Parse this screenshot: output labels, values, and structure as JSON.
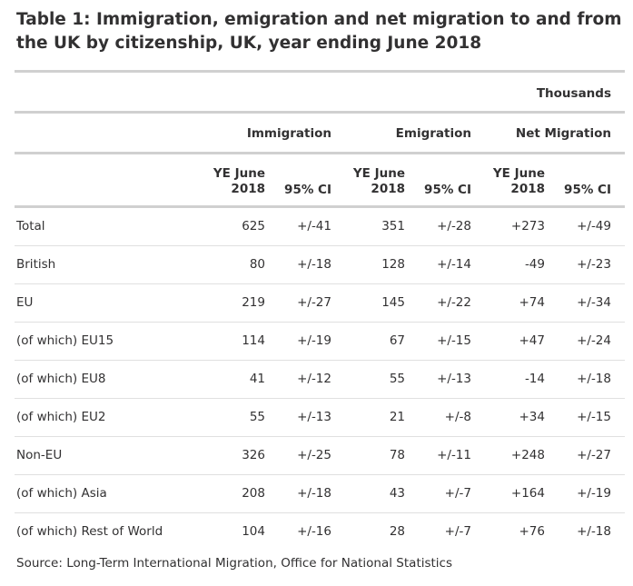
{
  "title": "Table 1: Immigration, emigration and net migration to and from the UK by citizenship, UK, year ending June 2018",
  "units": "Thousands",
  "groups": {
    "immigration": "Immigration",
    "emigration": "Emigration",
    "net": "Net Migration"
  },
  "subheaders": {
    "ye_line1": "YE June",
    "ye_line2": "2018",
    "ci": "95% CI"
  },
  "rows": [
    {
      "label": "Total",
      "imm": "625",
      "imm_ci": "+/-41",
      "emi": "351",
      "emi_ci": "+/-28",
      "net": "+273",
      "net_ci": "+/-49"
    },
    {
      "label": "British",
      "imm": "80",
      "imm_ci": "+/-18",
      "emi": "128",
      "emi_ci": "+/-14",
      "net": "-49",
      "net_ci": "+/-23"
    },
    {
      "label": "EU",
      "imm": "219",
      "imm_ci": "+/-27",
      "emi": "145",
      "emi_ci": "+/-22",
      "net": "+74",
      "net_ci": "+/-34"
    },
    {
      "label": "(of which) EU15",
      "imm": "114",
      "imm_ci": "+/-19",
      "emi": "67",
      "emi_ci": "+/-15",
      "net": "+47",
      "net_ci": "+/-24"
    },
    {
      "label": "(of which) EU8",
      "imm": "41",
      "imm_ci": "+/-12",
      "emi": "55",
      "emi_ci": "+/-13",
      "net": "-14",
      "net_ci": "+/-18"
    },
    {
      "label": "(of which) EU2",
      "imm": "55",
      "imm_ci": "+/-13",
      "emi": "21",
      "emi_ci": "+/-8",
      "net": "+34",
      "net_ci": "+/-15"
    },
    {
      "label": "Non-EU",
      "imm": "326",
      "imm_ci": "+/-25",
      "emi": "78",
      "emi_ci": "+/-11",
      "net": "+248",
      "net_ci": "+/-27"
    },
    {
      "label": "(of which) Asia",
      "imm": "208",
      "imm_ci": "+/-18",
      "emi": "43",
      "emi_ci": "+/-7",
      "net": "+164",
      "net_ci": "+/-19"
    },
    {
      "label": "(of which) Rest of World",
      "imm": "104",
      "imm_ci": "+/-16",
      "emi": "28",
      "emi_ci": "+/-7",
      "net": "+76",
      "net_ci": "+/-18"
    }
  ],
  "source": "Source: Long-Term International Migration, Office for National Statistics"
}
